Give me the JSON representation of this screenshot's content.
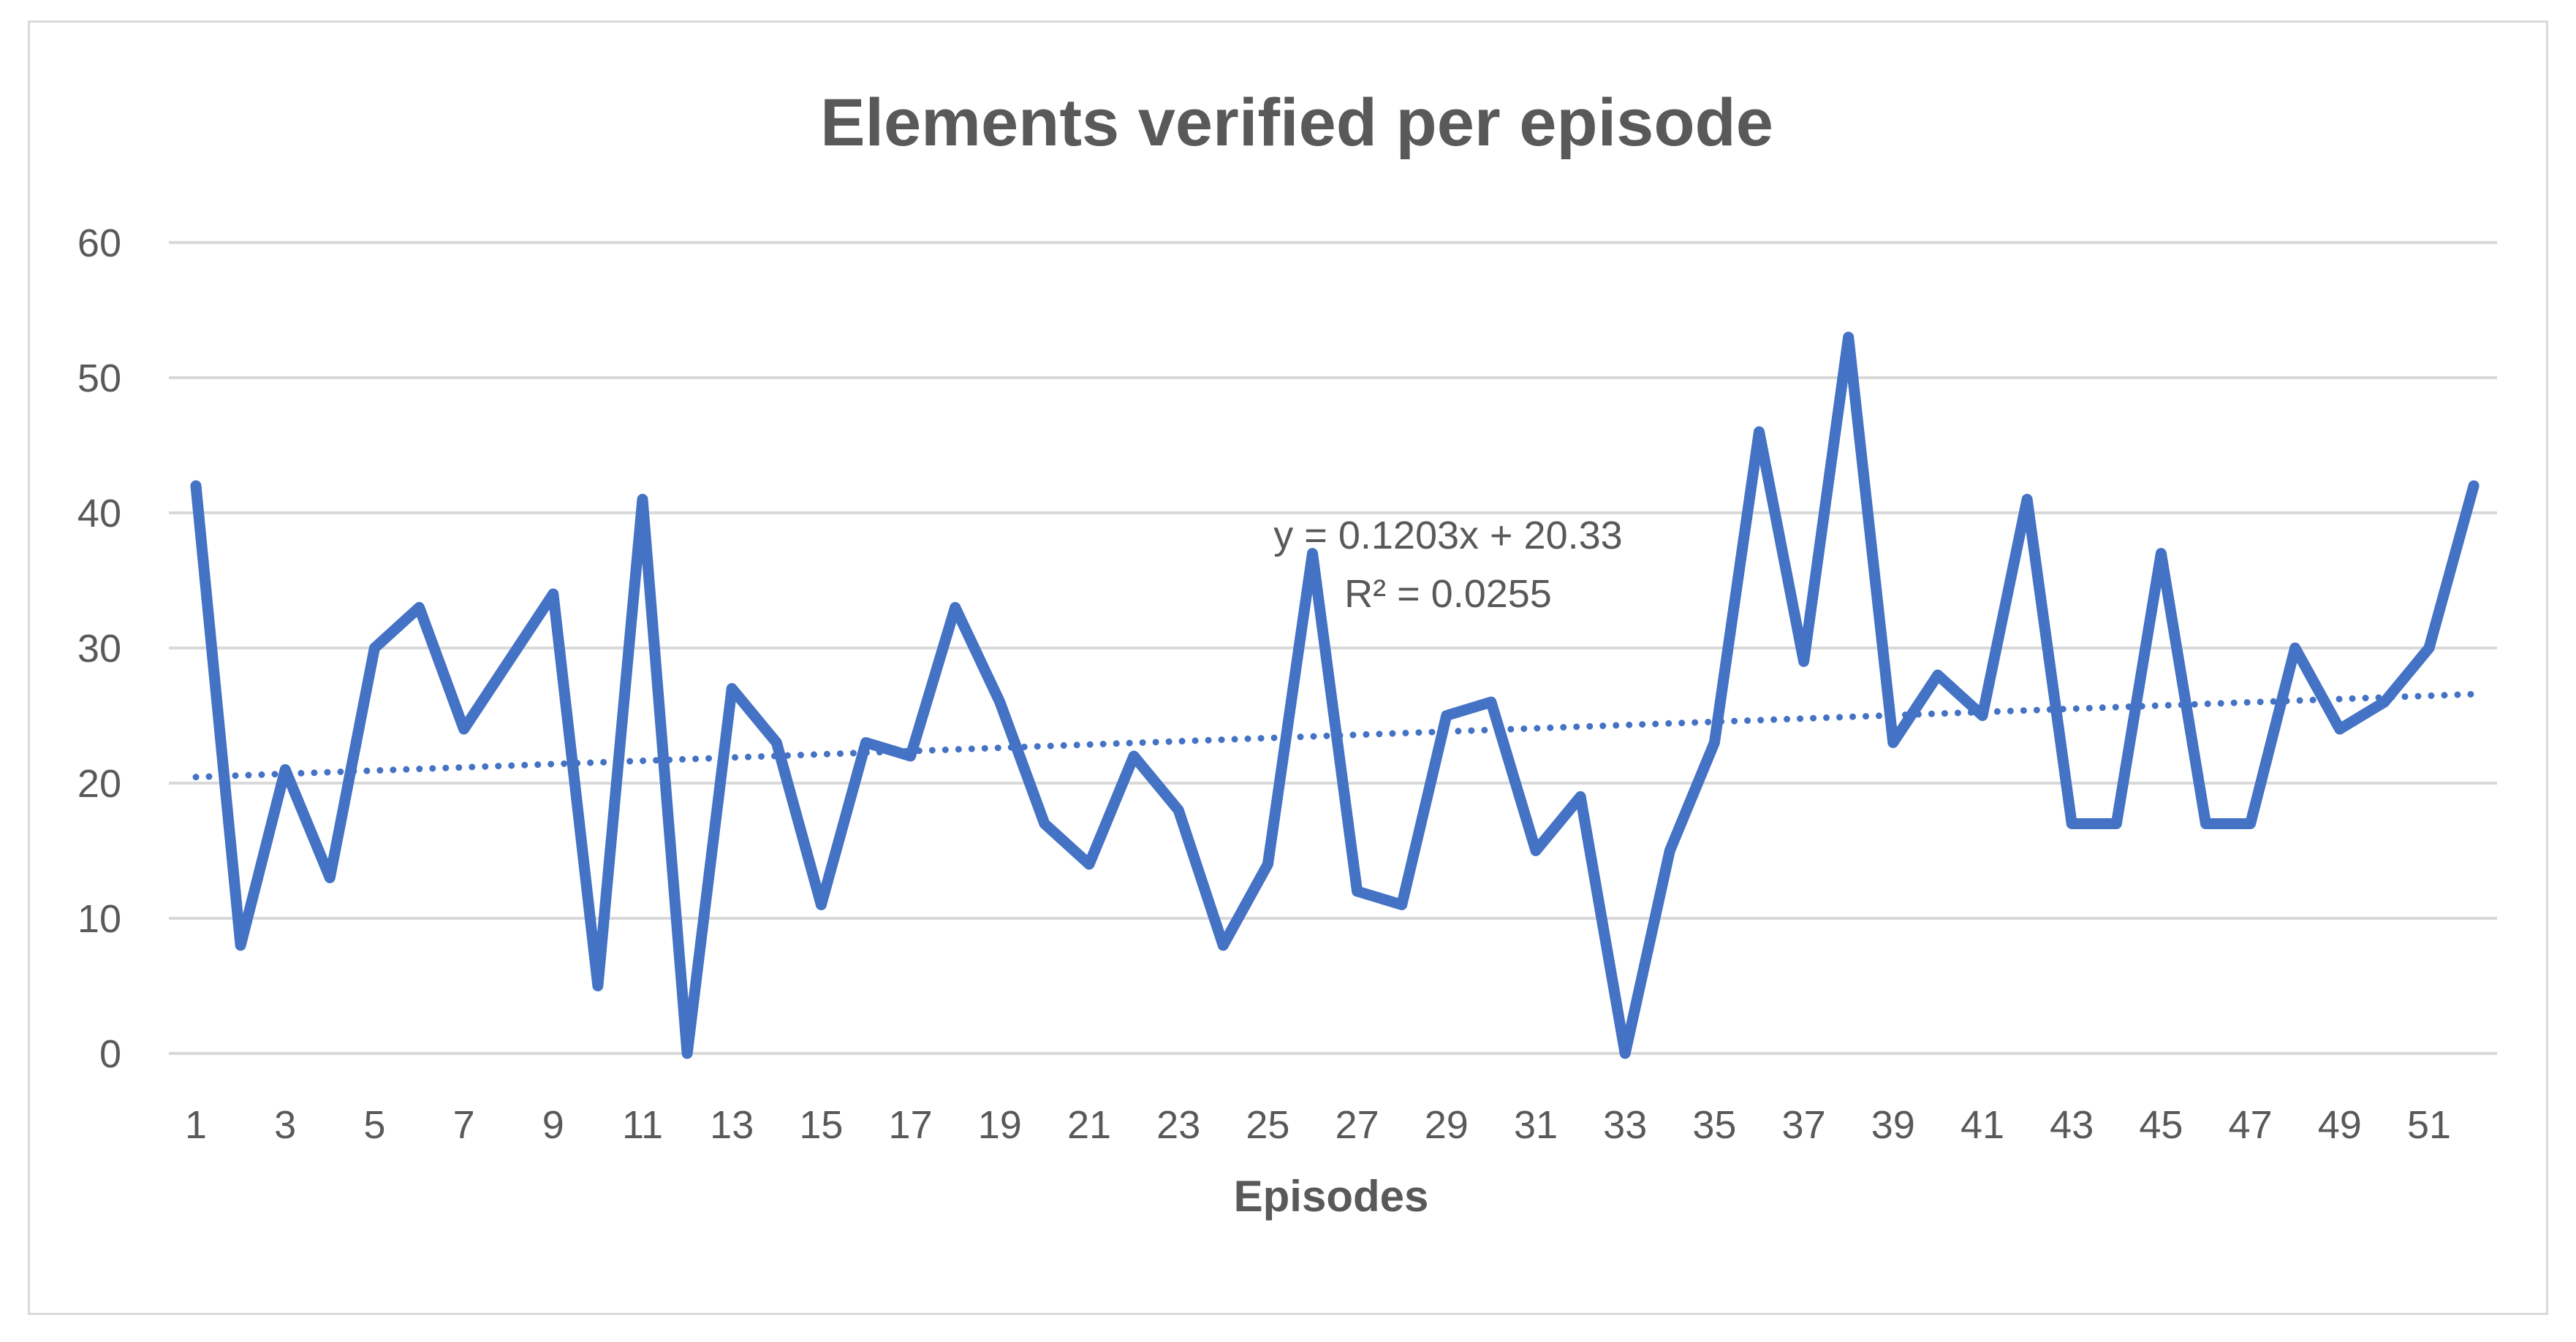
{
  "chart_data": {
    "type": "line",
    "title": "Elements verified per episode",
    "xlabel": "Episodes",
    "ylabel": "",
    "ylim": [
      0,
      60
    ],
    "yticks": [
      0,
      10,
      20,
      30,
      40,
      50,
      60
    ],
    "x": [
      1,
      2,
      3,
      4,
      5,
      6,
      7,
      8,
      9,
      10,
      11,
      12,
      13,
      14,
      15,
      16,
      17,
      18,
      19,
      20,
      21,
      22,
      23,
      24,
      25,
      26,
      27,
      28,
      29,
      30,
      31,
      32,
      33,
      34,
      35,
      36,
      37,
      38,
      39,
      40,
      41,
      42,
      43,
      44,
      45,
      46,
      47,
      48,
      49,
      50,
      51,
      52
    ],
    "xtick_labels": [
      "1",
      "3",
      "5",
      "7",
      "9",
      "11",
      "13",
      "15",
      "17",
      "19",
      "21",
      "23",
      "25",
      "27",
      "29",
      "31",
      "33",
      "35",
      "37",
      "39",
      "41",
      "43",
      "45",
      "47",
      "49",
      "51"
    ],
    "series": [
      {
        "values": [
          42,
          8,
          21,
          13,
          30,
          33,
          24,
          29,
          34,
          5,
          41,
          0,
          27,
          23,
          11,
          23,
          22,
          33,
          26,
          17,
          14,
          22,
          18,
          8,
          14,
          37,
          12,
          11,
          25,
          26,
          15,
          19,
          0,
          15,
          23,
          46,
          29,
          53,
          23,
          28,
          25,
          41,
          17,
          17,
          37,
          17,
          17,
          30,
          24,
          26,
          30,
          42
        ],
        "color": "#4472c4"
      }
    ],
    "trendline": {
      "type": "linear",
      "slope": 0.1203,
      "intercept": 20.33,
      "equation": "y = 0.1203x + 20.33",
      "r_squared": "R² = 0.0255",
      "style": "dotted",
      "color": "#4472c4"
    },
    "grid": true,
    "legend": "none"
  }
}
